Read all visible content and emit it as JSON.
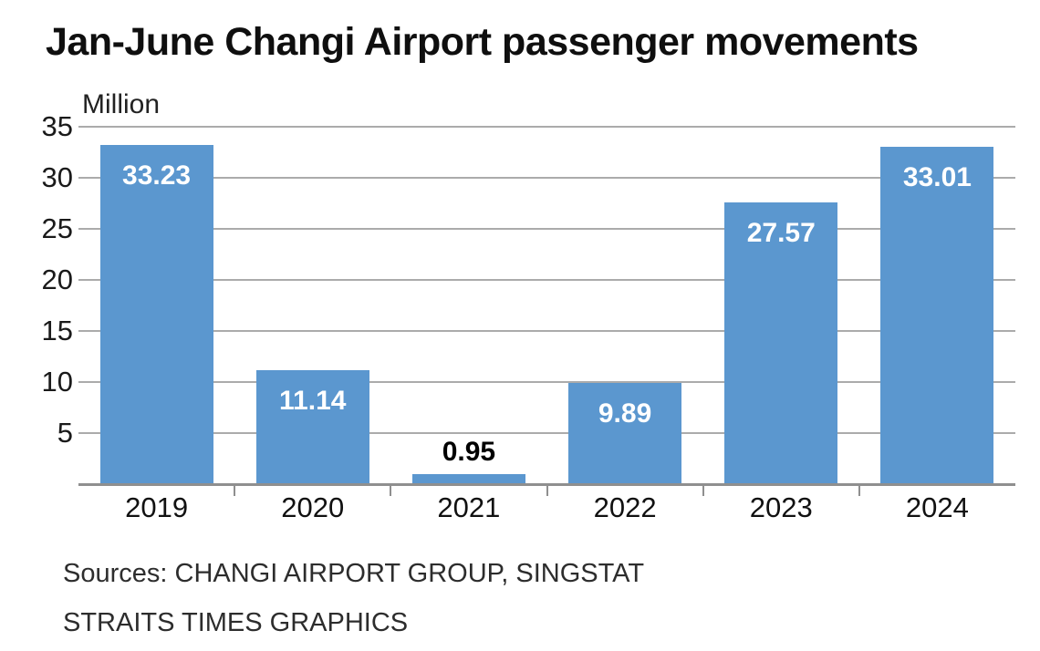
{
  "title": "Jan-June Changi Airport passenger movements",
  "chart_data": {
    "type": "bar",
    "title": "Jan-June Changi Airport passenger movements",
    "unit_label": "Million",
    "categories": [
      "2019",
      "2020",
      "2021",
      "2022",
      "2023",
      "2024"
    ],
    "values": [
      33.23,
      11.14,
      0.95,
      9.89,
      27.57,
      33.01
    ],
    "value_labels": [
      "33.23",
      "11.14",
      "0.95",
      "9.89",
      "27.57",
      "33.01"
    ],
    "xlabel": "",
    "ylabel": "Million",
    "ylim": [
      0,
      35
    ],
    "yticks": [
      35,
      30,
      25,
      20,
      15,
      10,
      5
    ],
    "grid": true,
    "legend": "none",
    "bar_color": "#5b97cf",
    "grid_color": "#ababab",
    "axis_color": "#8f8f8f",
    "label_color_inside_bar": "#ffffff",
    "label_color_above_bar": "#000000"
  },
  "footer": {
    "sources_line1": "Sources: CHANGI AIRPORT GROUP, SINGSTAT",
    "sources_line2": "STRAITS TIMES GRAPHICS"
  }
}
